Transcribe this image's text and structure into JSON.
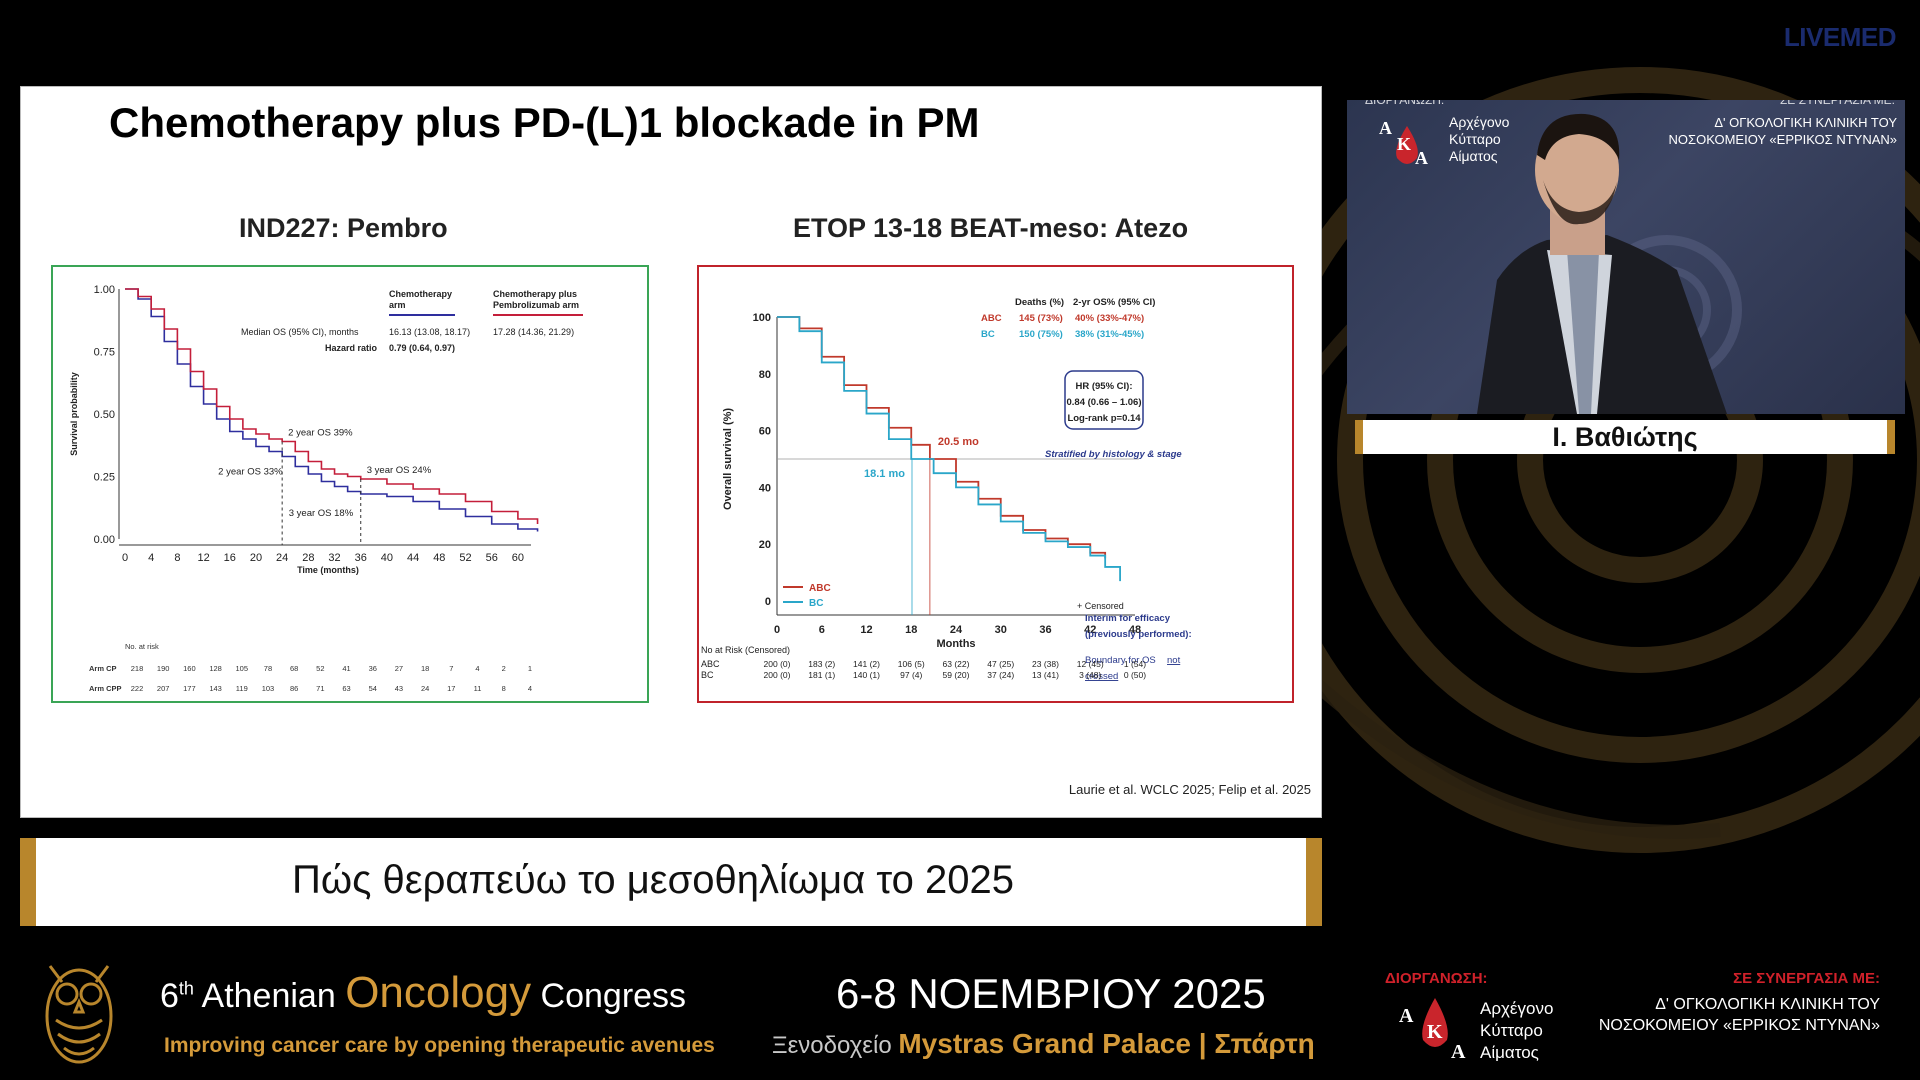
{
  "brand": "LIVEMED",
  "slide": {
    "title": "Chemotherapy plus PD-(L)1 blockade in PM",
    "left_subtitle": "IND227: Pembro",
    "right_subtitle": "ETOP 13-18 BEAT-meso: Atezo",
    "reference": "Laurie et al. WCLC 2025; Felip et al. 2025"
  },
  "chart_data": [
    {
      "type": "line",
      "ylabel": "Survival probability",
      "xlabel": "Time (months)",
      "ylim": [
        0,
        1
      ],
      "xlim": [
        0,
        62
      ],
      "yticks": [
        "0.00",
        "0.25",
        "0.50",
        "0.75",
        "1.00"
      ],
      "xticks": [
        0,
        4,
        8,
        12,
        16,
        20,
        24,
        28,
        32,
        36,
        40,
        44,
        48,
        52,
        56,
        60
      ],
      "legend": {
        "col1": "Chemotherapy arm",
        "col2": "Chemotherapy plus Pembrolizumab arm",
        "median_label": "Median OS (95% CI), months",
        "median_cp": "16.13 (13.08, 18.17)",
        "median_cpp": "17.28 (14.36, 21.29)",
        "hr_label": "Hazard ratio",
        "hr_value": "0.79 (0.64, 0.97)"
      },
      "annotations": [
        "2 year OS 39%",
        "2 year OS 33%",
        "3 year OS 24%",
        "3 year OS 18%"
      ],
      "series": [
        {
          "name": "Chemotherapy arm",
          "color": "#2e2e9e",
          "x": [
            0,
            2,
            4,
            6,
            8,
            10,
            12,
            14,
            16,
            18,
            20,
            22,
            24,
            26,
            28,
            30,
            32,
            34,
            36,
            40,
            44,
            48,
            52,
            56,
            60,
            63
          ],
          "y": [
            1.0,
            0.96,
            0.89,
            0.79,
            0.7,
            0.61,
            0.54,
            0.48,
            0.43,
            0.4,
            0.37,
            0.35,
            0.33,
            0.29,
            0.26,
            0.23,
            0.21,
            0.19,
            0.18,
            0.17,
            0.15,
            0.12,
            0.09,
            0.06,
            0.04,
            0.03
          ]
        },
        {
          "name": "Chemotherapy plus Pembrolizumab arm",
          "color": "#c41e3a",
          "x": [
            0,
            2,
            4,
            6,
            8,
            10,
            12,
            14,
            16,
            18,
            20,
            22,
            24,
            26,
            28,
            30,
            32,
            34,
            36,
            40,
            44,
            48,
            52,
            56,
            60,
            63
          ],
          "y": [
            1.0,
            0.97,
            0.92,
            0.84,
            0.76,
            0.67,
            0.6,
            0.53,
            0.48,
            0.44,
            0.42,
            0.4,
            0.39,
            0.35,
            0.31,
            0.28,
            0.26,
            0.25,
            0.24,
            0.22,
            0.2,
            0.18,
            0.15,
            0.11,
            0.08,
            0.06
          ]
        }
      ],
      "risk_table": {
        "title": "No. at risk",
        "rows": [
          {
            "label": "Arm CP",
            "values": [
              "218",
              "190",
              "160",
              "128",
              "105",
              "78",
              "68",
              "52",
              "41",
              "36",
              "27",
              "18",
              "7",
              "4",
              "2",
              "1"
            ]
          },
          {
            "label": "Arm CPP",
            "values": [
              "222",
              "207",
              "177",
              "143",
              "119",
              "103",
              "86",
              "71",
              "63",
              "54",
              "43",
              "24",
              "17",
              "11",
              "8",
              "4"
            ]
          }
        ]
      }
    },
    {
      "type": "line",
      "ylabel": "Overall survival (%)",
      "xlabel": "Months",
      "ylim": [
        0,
        100
      ],
      "xlim": [
        0,
        48
      ],
      "yticks": [
        "0",
        "20",
        "40",
        "60",
        "80",
        "100"
      ],
      "xticks": [
        0,
        6,
        12,
        18,
        24,
        30,
        36,
        42,
        48
      ],
      "legend_table": {
        "col1": "Deaths (%)",
        "col2": "2-yr OS% (95% CI)",
        "rows": [
          {
            "arm": "ABC",
            "deaths": "145 (73%)",
            "os": "40% (33%-47%)"
          },
          {
            "arm": "BC",
            "deaths": "150 (75%)",
            "os": "38% (31%-45%)"
          }
        ]
      },
      "hr_box": [
        "HR (95% CI):",
        "0.84 (0.66 – 1.06)",
        "Log-rank p=0.14"
      ],
      "stratified": "Stratified by histology & stage",
      "median_abc": "20.5 mo",
      "median_bc": "18.1 mo",
      "censored": "+ Censored",
      "interim_title": "Interim for efficacy (previously performed):",
      "boundary_prefix": "Boundary for OS",
      "boundary_link": "not crossed",
      "series": [
        {
          "name": "ABC",
          "color": "#c0392b",
          "x": [
            0,
            3,
            6,
            9,
            12,
            15,
            18,
            20.5,
            24,
            27,
            30,
            33,
            36,
            39,
            42,
            44
          ],
          "y": [
            100,
            96,
            86,
            76,
            68,
            61,
            55,
            50,
            42,
            36,
            30,
            25,
            22,
            20,
            17,
            15
          ]
        },
        {
          "name": "BC",
          "color": "#2aa6c9",
          "x": [
            0,
            3,
            6,
            9,
            12,
            15,
            18,
            18.1,
            21,
            24,
            27,
            30,
            33,
            36,
            39,
            42,
            44,
            46
          ],
          "y": [
            100,
            95,
            84,
            74,
            66,
            57,
            50,
            50,
            45,
            40,
            34,
            28,
            24,
            21,
            19,
            16,
            12,
            7
          ]
        }
      ],
      "risk_table": {
        "title": "No at Risk (Censored)",
        "rows": [
          {
            "label": "ABC",
            "values": [
              "200 (0)",
              "183 (2)",
              "141 (2)",
              "106 (5)",
              "63 (22)",
              "47 (25)",
              "23 (38)",
              "12 (45)",
              "1 (54)"
            ]
          },
          {
            "label": "BC",
            "values": [
              "200 (0)",
              "181 (1)",
              "140 (1)",
              "97 (4)",
              "59 (20)",
              "37 (24)",
              "13 (41)",
              "3 (48)",
              "0 (50)"
            ]
          }
        ]
      }
    }
  ],
  "speaker": {
    "top_left_cut": "ΔΙΟΡΓΑΝΩΣΗ:",
    "org_lines": [
      "Αρχέγονο",
      "Κύτταρο",
      "Αίματος"
    ],
    "top_right_cut": "ΣΕ ΣΥΝΕΡΓΑΣΙΑ ΜΕ:",
    "collab_lines": [
      "Δ' ΟΓΚΟΛΟΓΙΚΗ ΚΛΙΝΙΚΗ ΤΟΥ",
      "ΝΟΣΟΚΟΜΕΙΟΥ «ΕΡΡΙΚΟΣ ΝΤΥΝΑΝ»"
    ],
    "name": "Ι. Βαθιώτης"
  },
  "lower_third": "Πώς θεραπεύω το μεσοθηλίωμα το 2025",
  "footer": {
    "congress_num": "6",
    "congress_sup": "th",
    "congress_word1": "Athenian",
    "congress_word2": "Oncology",
    "congress_word3": "Congress",
    "tagline": "Improving cancer care by opening therapeutic avenues",
    "dates": "6-8 ΝΟΕΜΒΡΙΟΥ 2025",
    "venue_prefix": "Ξενοδοχείο",
    "venue_name": "Mystras Grand Palace | Σπάρτη",
    "org_label": "ΔΙΟΡΓΑΝΩΣΗ:",
    "org_lines": [
      "Αρχέγονο",
      "Κύτταρο",
      "Αίματος"
    ],
    "collab_label": "ΣΕ ΣΥΝΕΡΓΑΣΙΑ ΜΕ:",
    "collab_lines": [
      "Δ' ΟΓΚΟΛΟΓΙΚΗ ΚΛΙΝΙΚΗ ΤΟΥ",
      "ΝΟΣΟΚΟΜΕΙΟΥ «ΕΡΡΙΚΟΣ ΝΤΥΝΑΝ»"
    ]
  },
  "colors": {
    "gold": "#b8862c",
    "orange_text": "#d49a3a",
    "red_label": "#d0212a",
    "green_border": "#3aa556",
    "red_border": "#c0232b"
  }
}
